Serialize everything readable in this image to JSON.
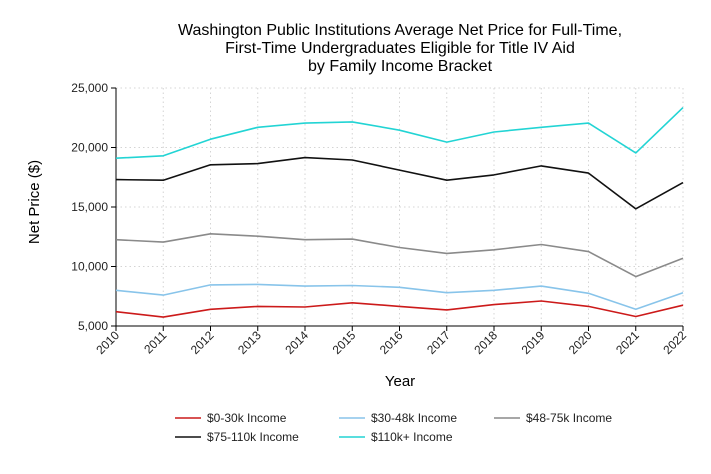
{
  "chart_data": {
    "type": "line",
    "title_lines": [
      "Washington Public Institutions Average Net Price for Full-Time,",
      "First-Time Undergraduates Eligible for Title IV Aid",
      "by Family Income Bracket"
    ],
    "xlabel": "Year",
    "ylabel": "Net Price ($)",
    "x": [
      "2010",
      "2011",
      "2012",
      "2013",
      "2014",
      "2015",
      "2016",
      "2017",
      "2018",
      "2019",
      "2020",
      "2021",
      "2022"
    ],
    "ylim": [
      5000,
      25000
    ],
    "yticks": [
      5000,
      10000,
      15000,
      20000,
      25000
    ],
    "ytick_labels": [
      "5,000",
      "10,000",
      "15,000",
      "20,000",
      "25,000"
    ],
    "grid": true,
    "legend_position": "bottom",
    "series": [
      {
        "name": "$0-30k Income",
        "color": "#cc1a1a",
        "values": [
          6200,
          5750,
          6400,
          6650,
          6600,
          6950,
          6650,
          6350,
          6800,
          7100,
          6650,
          5800,
          6750
        ]
      },
      {
        "name": "$30-48k Income",
        "color": "#88c4ea",
        "values": [
          8000,
          7600,
          8450,
          8500,
          8350,
          8400,
          8250,
          7800,
          8000,
          8350,
          7750,
          6400,
          7800
        ]
      },
      {
        "name": "$48-75k Income",
        "color": "#8a8a8a",
        "values": [
          12250,
          12050,
          12750,
          12550,
          12250,
          12300,
          11600,
          11100,
          11400,
          11850,
          11250,
          9150,
          10700
        ]
      },
      {
        "name": "$75-110k Income",
        "color": "#111111",
        "values": [
          17300,
          17250,
          18550,
          18650,
          19150,
          18950,
          18100,
          17250,
          17700,
          18450,
          17850,
          14850,
          17050
        ]
      },
      {
        "name": "$110k+ Income",
        "color": "#22d4d4",
        "values": [
          19100,
          19300,
          20700,
          21700,
          22050,
          22150,
          21450,
          20450,
          21300,
          21700,
          22050,
          19550,
          23350
        ]
      }
    ]
  }
}
